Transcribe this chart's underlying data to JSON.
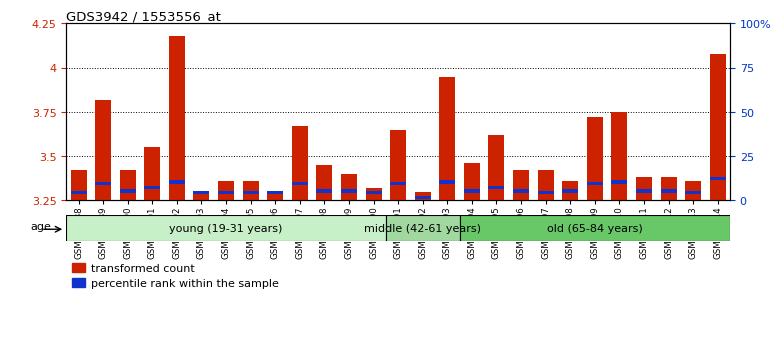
{
  "title": "GDS3942 / 1553556_at",
  "samples": [
    "GSM812988",
    "GSM812989",
    "GSM812990",
    "GSM812991",
    "GSM812992",
    "GSM812993",
    "GSM812994",
    "GSM812995",
    "GSM812996",
    "GSM812997",
    "GSM812998",
    "GSM812999",
    "GSM813000",
    "GSM813001",
    "GSM813002",
    "GSM813003",
    "GSM813004",
    "GSM813005",
    "GSM813006",
    "GSM813007",
    "GSM813008",
    "GSM813009",
    "GSM813010",
    "GSM813011",
    "GSM813012",
    "GSM813013",
    "GSM813014"
  ],
  "red_values": [
    3.42,
    3.82,
    3.42,
    3.55,
    4.18,
    3.3,
    3.36,
    3.36,
    3.3,
    3.67,
    3.45,
    3.4,
    3.32,
    3.65,
    3.3,
    3.95,
    3.46,
    3.62,
    3.42,
    3.42,
    3.36,
    3.72,
    3.75,
    3.38,
    3.38,
    3.36,
    4.08
  ],
  "blue_positions": [
    3.285,
    3.335,
    3.295,
    3.315,
    3.345,
    3.285,
    3.285,
    3.285,
    3.285,
    3.335,
    3.295,
    3.295,
    3.285,
    3.335,
    3.258,
    3.345,
    3.295,
    3.315,
    3.295,
    3.285,
    3.295,
    3.335,
    3.345,
    3.295,
    3.295,
    3.285,
    3.365
  ],
  "groups": [
    {
      "label": "young (19-31 years)",
      "start": 0,
      "end": 13,
      "color": "#c8f0c8"
    },
    {
      "label": "middle (42-61 years)",
      "start": 13,
      "end": 16,
      "color": "#a0d8a0"
    },
    {
      "label": "old (65-84 years)",
      "start": 16,
      "end": 27,
      "color": "#68c868"
    }
  ],
  "ylim_left": [
    3.25,
    4.25
  ],
  "ylim_right": [
    0,
    100
  ],
  "yticks_left": [
    3.25,
    3.5,
    3.75,
    4.0,
    4.25
  ],
  "ytick_labels_left": [
    "3.25",
    "3.5",
    "3.75",
    "4",
    "4.25"
  ],
  "yticks_right": [
    0,
    25,
    50,
    75,
    100
  ],
  "ytick_labels_right": [
    "0",
    "25",
    "50",
    "75",
    "100%"
  ],
  "bar_color_red": "#cc2200",
  "bar_color_blue": "#1133cc",
  "background_color": "#ffffff",
  "tick_label_color_left": "#cc2200",
  "tick_label_color_right": "#0033cc",
  "legend_red": "transformed count",
  "legend_blue": "percentile rank within the sample",
  "age_label": "age"
}
